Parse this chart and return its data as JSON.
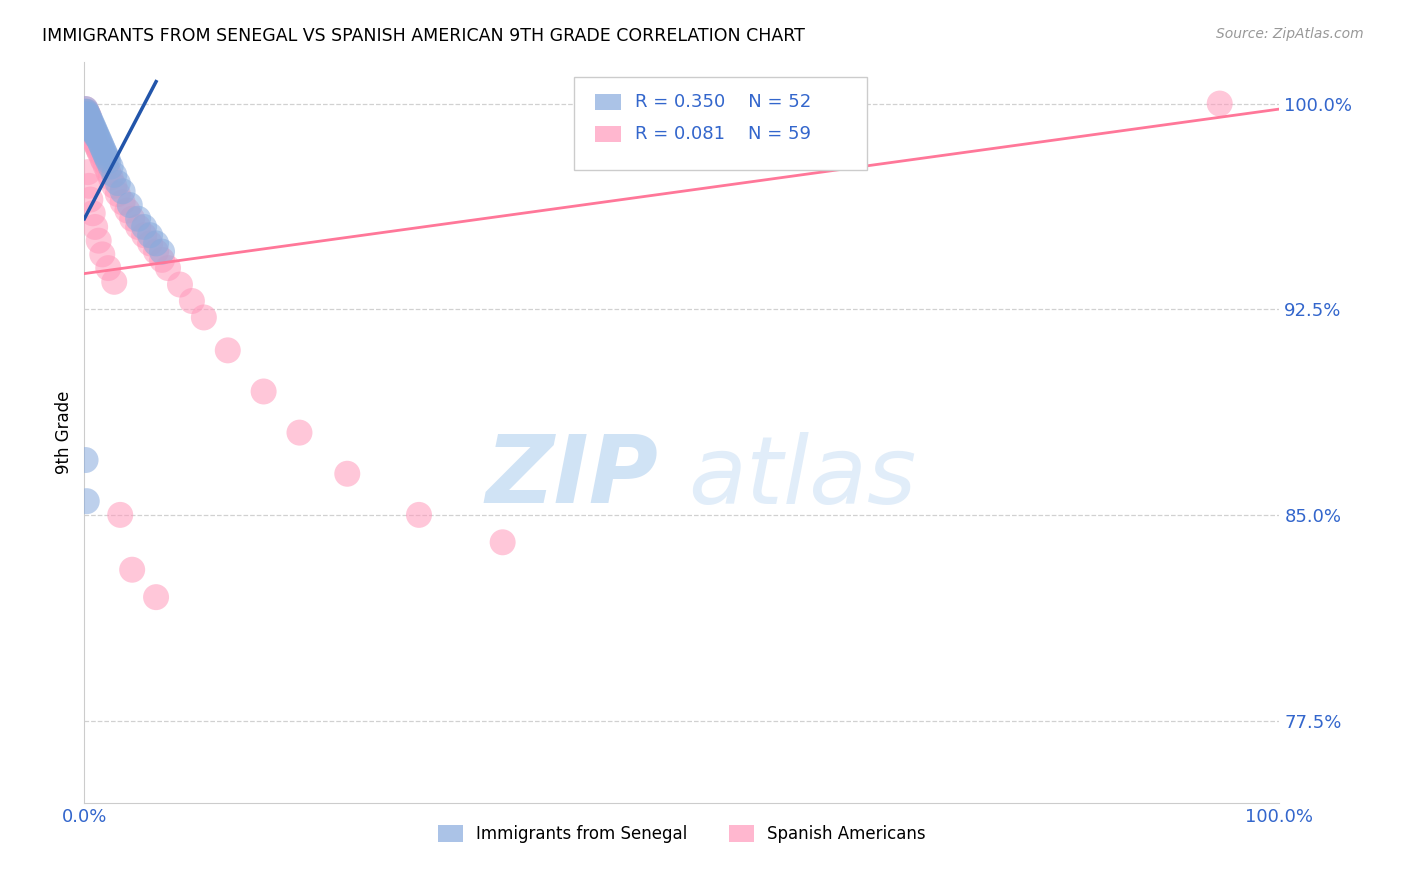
{
  "title": "IMMIGRANTS FROM SENEGAL VS SPANISH AMERICAN 9TH GRADE CORRELATION CHART",
  "source_text": "Source: ZipAtlas.com",
  "ylabel": "9th Grade",
  "watermark_zip": "ZIP",
  "watermark_atlas": "atlas",
  "xlim": [
    0.0,
    1.0
  ],
  "ylim": [
    0.745,
    1.015
  ],
  "yticks": [
    0.775,
    0.85,
    0.925,
    1.0
  ],
  "ytick_labels": [
    "77.5%",
    "85.0%",
    "92.5%",
    "100.0%"
  ],
  "xticks": [
    0.0,
    1.0
  ],
  "xtick_labels": [
    "0.0%",
    "100.0%"
  ],
  "blue_color": "#88AADD",
  "pink_color": "#FF99BB",
  "blue_line_color": "#2255AA",
  "pink_line_color": "#FF7799",
  "blue_trend_x": [
    0.0,
    0.06
  ],
  "blue_trend_y": [
    0.958,
    1.008
  ],
  "pink_trend_x": [
    0.0,
    1.0
  ],
  "pink_trend_y": [
    0.938,
    0.998
  ],
  "blue_scatter_x": [
    0.001,
    0.001,
    0.001,
    0.002,
    0.002,
    0.002,
    0.002,
    0.003,
    0.003,
    0.003,
    0.003,
    0.004,
    0.004,
    0.004,
    0.004,
    0.005,
    0.005,
    0.005,
    0.006,
    0.006,
    0.006,
    0.007,
    0.007,
    0.007,
    0.008,
    0.008,
    0.009,
    0.009,
    0.01,
    0.01,
    0.011,
    0.012,
    0.013,
    0.014,
    0.015,
    0.016,
    0.017,
    0.018,
    0.019,
    0.02,
    0.022,
    0.025,
    0.028,
    0.032,
    0.038,
    0.045,
    0.05,
    0.055,
    0.06,
    0.065,
    0.001,
    0.002
  ],
  "blue_scatter_y": [
    0.998,
    0.997,
    0.996,
    0.997,
    0.996,
    0.995,
    0.994,
    0.996,
    0.995,
    0.994,
    0.993,
    0.995,
    0.994,
    0.993,
    0.992,
    0.994,
    0.993,
    0.992,
    0.993,
    0.992,
    0.991,
    0.992,
    0.991,
    0.99,
    0.991,
    0.99,
    0.99,
    0.989,
    0.989,
    0.988,
    0.988,
    0.987,
    0.986,
    0.985,
    0.984,
    0.983,
    0.982,
    0.981,
    0.98,
    0.979,
    0.977,
    0.974,
    0.971,
    0.968,
    0.963,
    0.958,
    0.955,
    0.952,
    0.949,
    0.946,
    0.87,
    0.855
  ],
  "pink_scatter_x": [
    0.001,
    0.001,
    0.002,
    0.002,
    0.003,
    0.003,
    0.004,
    0.004,
    0.005,
    0.005,
    0.006,
    0.006,
    0.007,
    0.007,
    0.008,
    0.008,
    0.009,
    0.01,
    0.011,
    0.012,
    0.013,
    0.015,
    0.016,
    0.018,
    0.02,
    0.022,
    0.025,
    0.028,
    0.032,
    0.036,
    0.04,
    0.045,
    0.05,
    0.055,
    0.06,
    0.065,
    0.07,
    0.08,
    0.09,
    0.1,
    0.12,
    0.15,
    0.18,
    0.22,
    0.28,
    0.35,
    0.95,
    0.003,
    0.004,
    0.005,
    0.007,
    0.009,
    0.012,
    0.015,
    0.02,
    0.025,
    0.03,
    0.04,
    0.06
  ],
  "pink_scatter_y": [
    0.998,
    0.997,
    0.997,
    0.996,
    0.996,
    0.995,
    0.995,
    0.994,
    0.993,
    0.992,
    0.992,
    0.991,
    0.99,
    0.989,
    0.988,
    0.987,
    0.986,
    0.985,
    0.984,
    0.983,
    0.982,
    0.98,
    0.979,
    0.977,
    0.975,
    0.973,
    0.97,
    0.967,
    0.964,
    0.961,
    0.958,
    0.955,
    0.952,
    0.949,
    0.946,
    0.943,
    0.94,
    0.934,
    0.928,
    0.922,
    0.91,
    0.895,
    0.88,
    0.865,
    0.85,
    0.84,
    1.0,
    0.975,
    0.97,
    0.965,
    0.96,
    0.955,
    0.95,
    0.945,
    0.94,
    0.935,
    0.85,
    0.83,
    0.82
  ],
  "legend_items": [
    {
      "label": "R = 0.350",
      "n": "N = 52",
      "color": "#88AADD"
    },
    {
      "label": "R = 0.081",
      "n": "N = 59",
      "color": "#FF99BB"
    }
  ],
  "bottom_legend": [
    {
      "label": "Immigrants from Senegal",
      "color": "#88AADD"
    },
    {
      "label": "Spanish Americans",
      "color": "#FF99BB"
    }
  ]
}
